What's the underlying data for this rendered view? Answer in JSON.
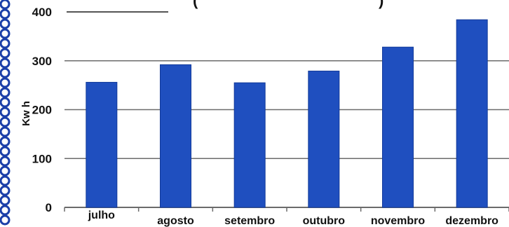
{
  "chart_data": {
    "type": "bar",
    "title": "(",
    "title_right": ")",
    "categories": [
      "julho",
      "agosto",
      "setembro",
      "outubro",
      "novembro",
      "dezembro"
    ],
    "values": [
      256,
      292,
      255,
      279,
      328,
      384
    ],
    "xlabel": "",
    "ylabel": "Kw h",
    "ylim": [
      0,
      400
    ],
    "yticks": [
      "0",
      "100",
      "200",
      "300",
      "400"
    ],
    "grid": true,
    "legend": "none"
  },
  "colors": {
    "bar": "#1f4fbf",
    "bar_edge": "#123a99",
    "grid": "#6b6b6b",
    "left_band": "#1b3fa8"
  }
}
